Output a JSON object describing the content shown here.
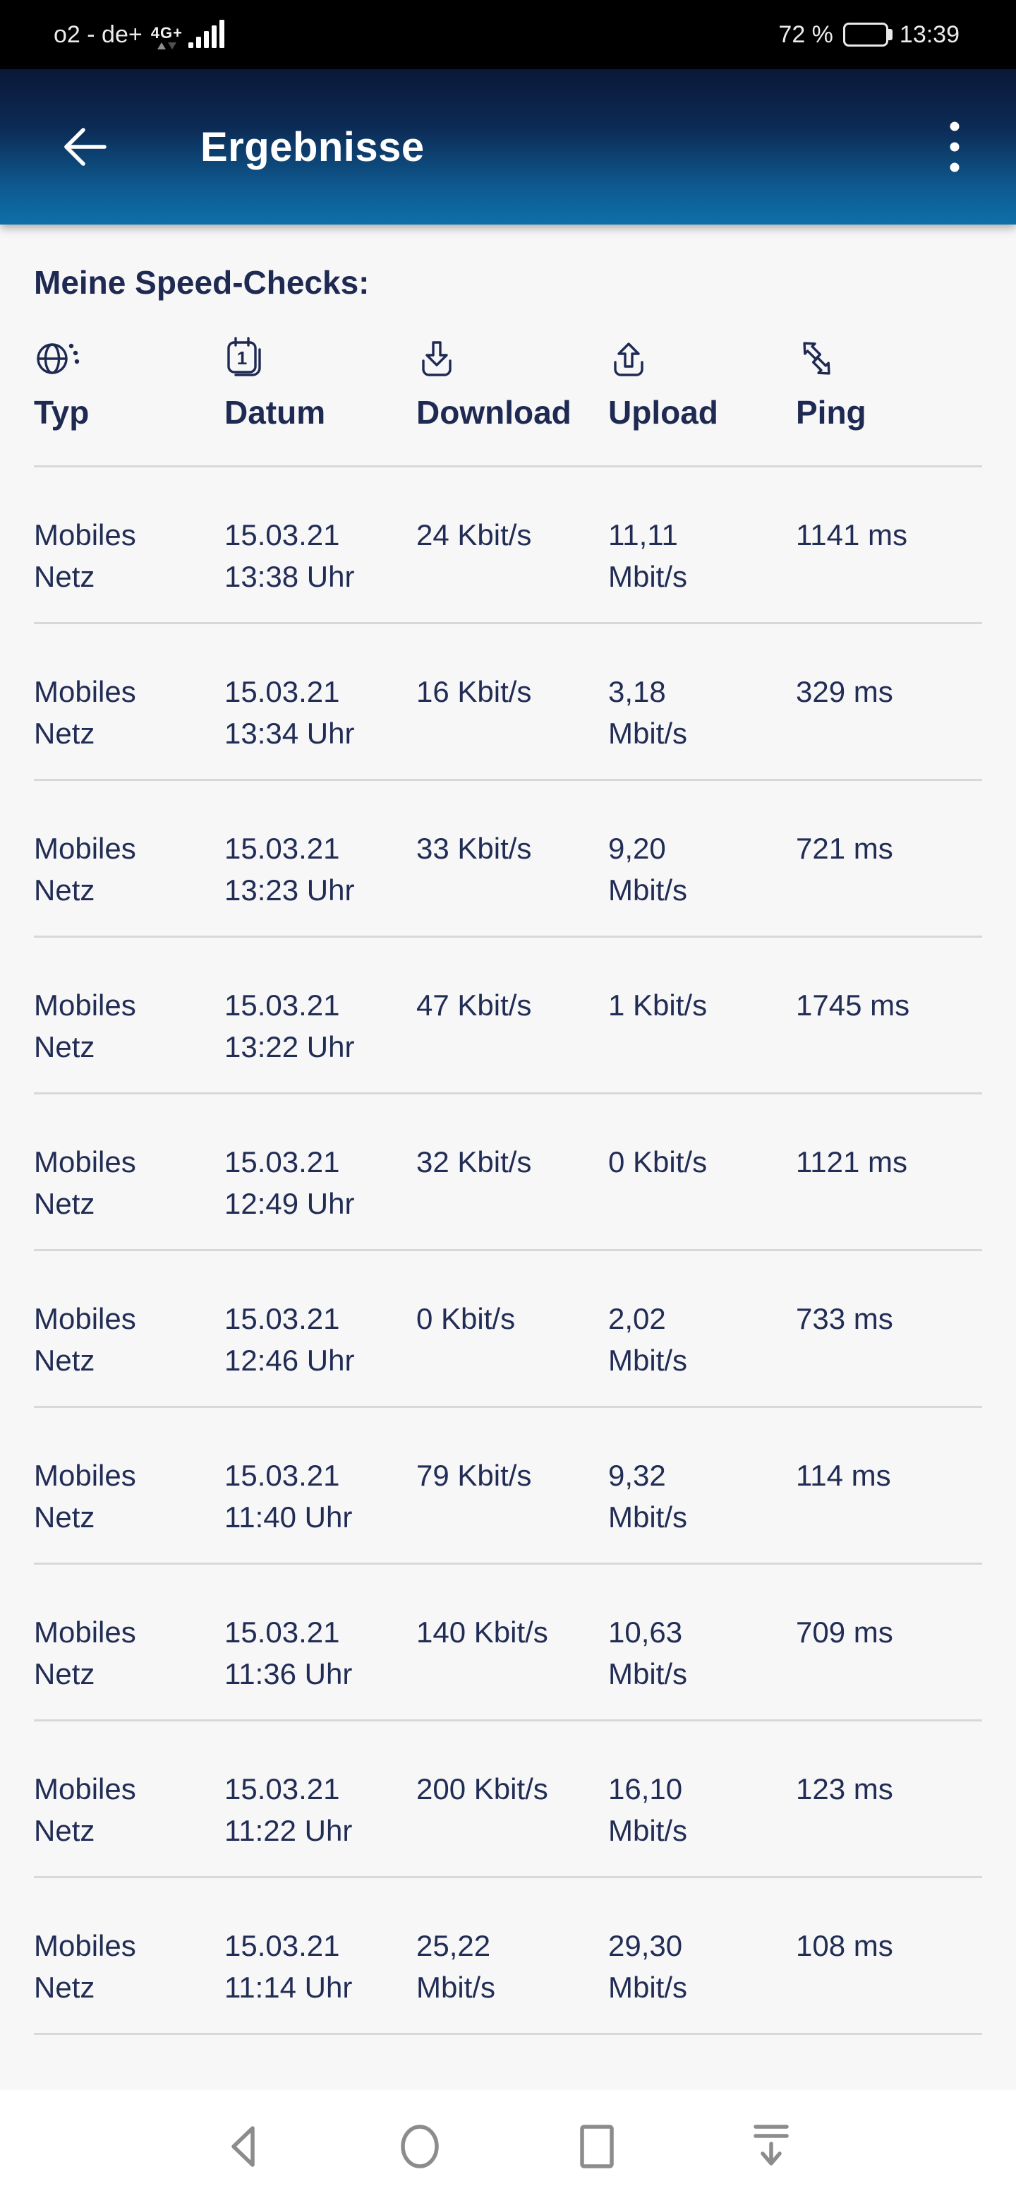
{
  "status_bar": {
    "carrier": "o2 - de+",
    "network_type": "4G+",
    "battery_percent": "72 %",
    "time": "13:39",
    "signal_bar_heights": [
      8,
      16,
      24,
      32,
      40
    ]
  },
  "app_bar": {
    "title": "Ergebnisse",
    "back_icon": "arrow-left-icon",
    "menu_icon": "three-dot-menu-icon"
  },
  "content": {
    "heading": "Meine Speed-Checks:"
  },
  "table": {
    "columns": [
      {
        "label": "Typ",
        "icon": "globe-icon"
      },
      {
        "label": "Datum",
        "icon": "calendar-icon"
      },
      {
        "label": "Download",
        "icon": "download-icon"
      },
      {
        "label": "Upload",
        "icon": "upload-icon"
      },
      {
        "label": "Ping",
        "icon": "ping-arrows-icon"
      }
    ],
    "rows": [
      {
        "typ": [
          "Mobiles",
          "Netz"
        ],
        "datum": [
          "15.03.21",
          "13:38 Uhr"
        ],
        "download": [
          "24 Kbit/s"
        ],
        "upload": [
          "11,11",
          "Mbit/s"
        ],
        "ping": [
          "1141 ms"
        ]
      },
      {
        "typ": [
          "Mobiles",
          "Netz"
        ],
        "datum": [
          "15.03.21",
          "13:34 Uhr"
        ],
        "download": [
          "16 Kbit/s"
        ],
        "upload": [
          "3,18",
          "Mbit/s"
        ],
        "ping": [
          "329 ms"
        ]
      },
      {
        "typ": [
          "Mobiles",
          "Netz"
        ],
        "datum": [
          "15.03.21",
          "13:23 Uhr"
        ],
        "download": [
          "33 Kbit/s"
        ],
        "upload": [
          "9,20",
          "Mbit/s"
        ],
        "ping": [
          "721 ms"
        ]
      },
      {
        "typ": [
          "Mobiles",
          "Netz"
        ],
        "datum": [
          "15.03.21",
          "13:22 Uhr"
        ],
        "download": [
          "47 Kbit/s"
        ],
        "upload": [
          "1 Kbit/s"
        ],
        "ping": [
          "1745 ms"
        ]
      },
      {
        "typ": [
          "Mobiles",
          "Netz"
        ],
        "datum": [
          "15.03.21",
          "12:49 Uhr"
        ],
        "download": [
          "32 Kbit/s"
        ],
        "upload": [
          "0 Kbit/s"
        ],
        "ping": [
          "1121 ms"
        ]
      },
      {
        "typ": [
          "Mobiles",
          "Netz"
        ],
        "datum": [
          "15.03.21",
          "12:46 Uhr"
        ],
        "download": [
          "0 Kbit/s"
        ],
        "upload": [
          "2,02",
          "Mbit/s"
        ],
        "ping": [
          "733 ms"
        ]
      },
      {
        "typ": [
          "Mobiles",
          "Netz"
        ],
        "datum": [
          "15.03.21",
          "11:40 Uhr"
        ],
        "download": [
          "79 Kbit/s"
        ],
        "upload": [
          "9,32",
          "Mbit/s"
        ],
        "ping": [
          "114 ms"
        ]
      },
      {
        "typ": [
          "Mobiles",
          "Netz"
        ],
        "datum": [
          "15.03.21",
          "11:36 Uhr"
        ],
        "download": [
          "140 Kbit/s"
        ],
        "upload": [
          "10,63",
          "Mbit/s"
        ],
        "ping": [
          "709 ms"
        ]
      },
      {
        "typ": [
          "Mobiles",
          "Netz"
        ],
        "datum": [
          "15.03.21",
          "11:22 Uhr"
        ],
        "download": [
          "200 Kbit/s"
        ],
        "upload": [
          "16,10",
          "Mbit/s"
        ],
        "ping": [
          "123 ms"
        ]
      },
      {
        "typ": [
          "Mobiles",
          "Netz"
        ],
        "datum": [
          "15.03.21",
          "11:14 Uhr"
        ],
        "download": [
          "25,22",
          "Mbit/s"
        ],
        "upload": [
          "29,30",
          "Mbit/s"
        ],
        "ping": [
          "108 ms"
        ]
      }
    ]
  },
  "nav_bar": {
    "icons": [
      "back-triangle-icon",
      "home-circle-icon",
      "recents-square-icon",
      "hide-navbar-icon"
    ]
  },
  "colors": {
    "text_navy": "#1f2a52",
    "cell_navy": "#222d55",
    "header_gradient_top": "#0a1838",
    "header_gradient_bottom": "#0f6fa9",
    "divider": "#d8d8d8",
    "content_background": "#f7f7f8",
    "status_bar_background": "#000000",
    "nav_icon_gray": "#8c8c8c"
  }
}
